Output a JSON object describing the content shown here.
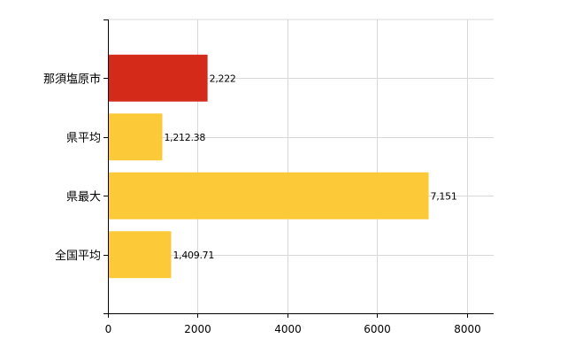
{
  "chart_data": {
    "type": "bar",
    "orientation": "horizontal",
    "categories": [
      "那須塩原市",
      "県平均",
      "県最大",
      "全国平均"
    ],
    "values": [
      2222,
      1212.38,
      7151,
      1409.71
    ],
    "value_labels": [
      "2,222",
      "1,212.38",
      "7,151",
      "1,409.71"
    ],
    "bar_colors": [
      "#d42a1a",
      "#fcc938",
      "#fcc938",
      "#fcc938"
    ],
    "x_ticks": [
      0,
      2000,
      4000,
      6000,
      8000
    ],
    "x_tick_labels": [
      "0",
      "2000",
      "4000",
      "6000",
      "8000"
    ],
    "xlim": [
      0,
      8600
    ],
    "grid": true,
    "legend": "none"
  }
}
